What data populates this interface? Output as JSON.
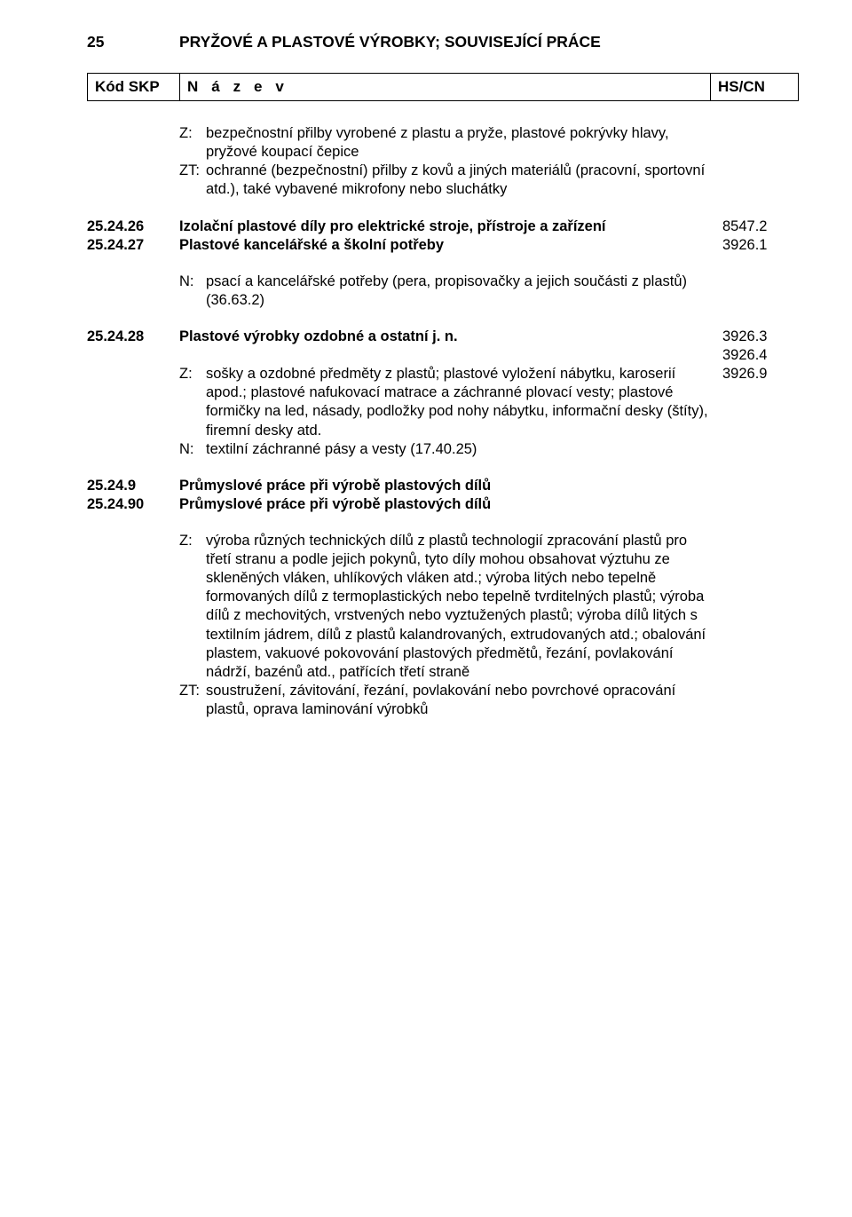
{
  "title_num": "25",
  "title_text": "PRYŽOVÉ A PLASTOVÉ VÝROBKY; SOUVISEJÍCÍ PRÁCE",
  "header": {
    "kod": "Kód SKP",
    "nazev": "N á z e v",
    "hs": "HS/CN"
  },
  "intro": {
    "z_marker": "Z:",
    "z_text": "bezpečnostní přilby vyrobené z plastu a pryže, plastové pokrývky hlavy, pryžové koupací čepice",
    "zt_marker": "ZT:",
    "zt_text": "ochranné (bezpečnostní) přilby z kovů a jiných materiálů (pracovní, sportovní atd.), také vybavené mikrofony nebo sluchátky"
  },
  "r2526": {
    "code": "25.24.26",
    "text": "Izolační plastové díly pro elektrické stroje, přístroje a zařízení",
    "hs": "8547.2"
  },
  "r2527": {
    "code": "25.24.27",
    "text": "Plastové kancelářské a školní potřeby",
    "hs": "3926.1",
    "n_marker": "N:",
    "n_text": "psací a kancelářské potřeby (pera, propisovačky a jejich součásti z plastů) (36.63.2)"
  },
  "r2528": {
    "code": "25.24.28",
    "text": "Plastové výrobky ozdobné a ostatní j. n.",
    "hs1": "3926.3",
    "hs2": "3926.4",
    "hs3": "3926.9",
    "z_marker": "Z:",
    "z_text": "sošky a ozdobné předměty z plastů; plastové vyložení nábytku, karoserií apod.; plastové nafukovací matrace a záchranné plovací vesty; plastové formičky na led, násady, podložky pod nohy nábytku, informační desky (štíty), firemní desky atd.",
    "n_marker": "N:",
    "n_text": "textilní záchranné pásy a vesty (17.40.25)"
  },
  "r2549": {
    "code": "25.24.9",
    "text": "Průmyslové práce při výrobě plastových dílů"
  },
  "r25490": {
    "code": "25.24.90",
    "text": "Průmyslové práce při výrobě plastových dílů",
    "z_marker": "Z:",
    "z_text": "výroba různých technických dílů z plastů technologií zpracování plastů pro třetí stranu a podle jejich pokynů, tyto díly mohou obsahovat výztuhu ze skleněných vláken, uhlíkových vláken atd.; výroba litých nebo tepelně formovaných dílů z termoplastických nebo tepelně tvrditelných plastů; výroba dílů z mechovitých, vrstvených nebo vyztužených plastů; výroba dílů litých s textilním jádrem, dílů z plastů kalandrovaných, extrudovaných atd.; obalování plastem, vakuové pokovování plastových předmětů, řezání, povlakování nádrží, bazénů atd., patřících třetí straně",
    "zt_marker": "ZT:",
    "zt_text": "soustružení, závitování, řezání, povlakování nebo povrchové opracování plastů, oprava laminování výrobků"
  }
}
